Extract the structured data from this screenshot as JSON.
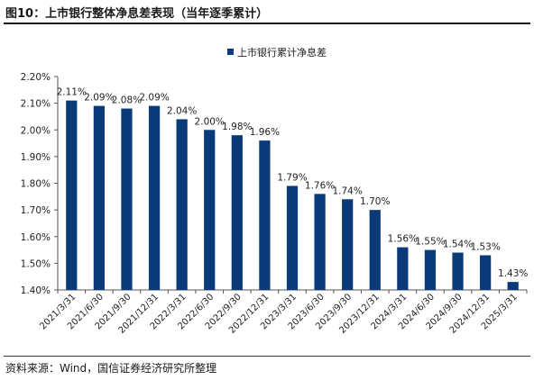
{
  "figure": {
    "title": "图10：上市银行整体净息差表现（当年逐季累计）",
    "source": "资料来源：Wind，国信证券经济研究所整理"
  },
  "colors": {
    "bar": "#0a3a78",
    "text": "#222222",
    "axis": "#555555"
  },
  "chart_data": {
    "type": "bar",
    "title": "",
    "xlabel": "",
    "ylabel": "",
    "ylim": [
      1.4,
      2.2
    ],
    "ytick_step": 0.1,
    "ytick_labels": [
      "1.40%",
      "1.50%",
      "1.60%",
      "1.70%",
      "1.80%",
      "1.90%",
      "2.00%",
      "2.10%",
      "2.20%"
    ],
    "grid": false,
    "legend_position": "top-center",
    "categories": [
      "2021/3/31",
      "2021/6/30",
      "2021/9/30",
      "2021/12/31",
      "2022/3/31",
      "2022/6/30",
      "2022/9/30",
      "2022/12/31",
      "2023/3/31",
      "2023/6/30",
      "2023/9/30",
      "2023/12/31",
      "2024/3/31",
      "2024/6/30",
      "2024/9/30",
      "2024/12/31",
      "2025/3/31"
    ],
    "series": [
      {
        "name": "上市银行累计净息差",
        "values": [
          2.11,
          2.09,
          2.08,
          2.09,
          2.04,
          2.0,
          1.98,
          1.96,
          1.79,
          1.76,
          1.74,
          1.7,
          1.56,
          1.55,
          1.54,
          1.53,
          1.43
        ],
        "labels": [
          "2.11%",
          "2.09%",
          "2.08%",
          "2.09%",
          "2.04%",
          "2.00%",
          "1.98%",
          "1.96%",
          "1.79%",
          "1.76%",
          "1.74%",
          "1.70%",
          "1.56%",
          "1.55%",
          "1.54%",
          "1.53%",
          "1.43%"
        ]
      }
    ]
  }
}
